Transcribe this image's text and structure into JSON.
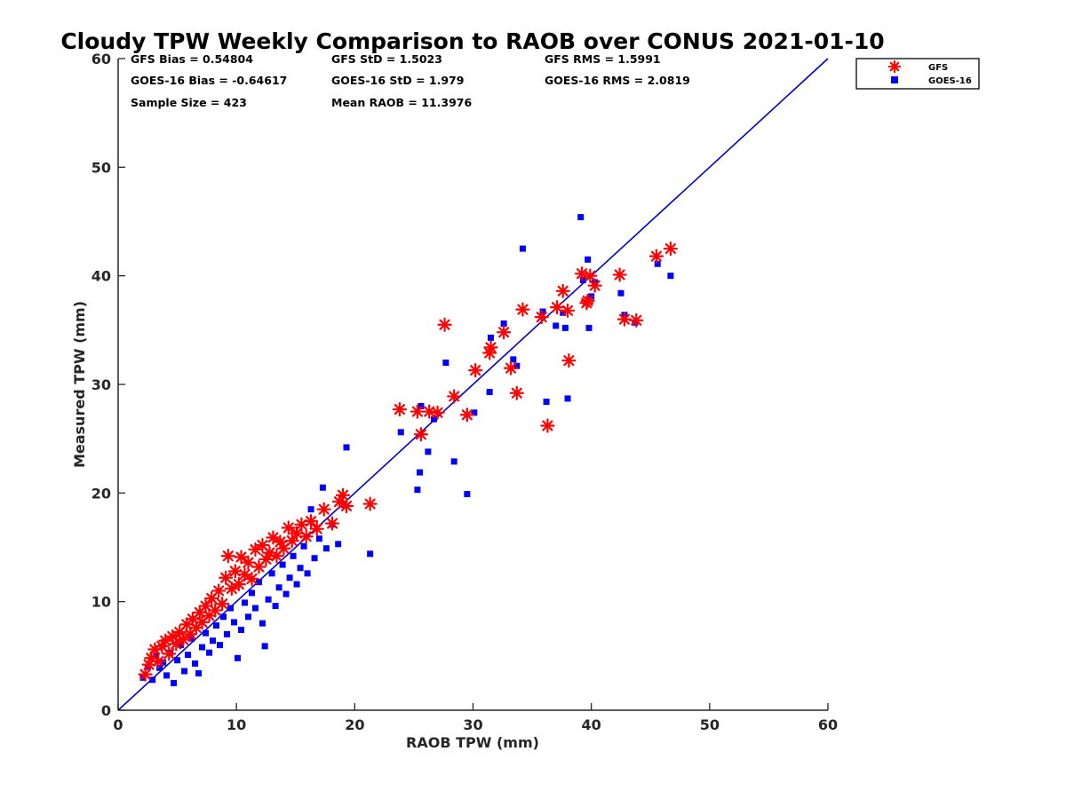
{
  "colors": {
    "gfs": "#ff0000",
    "goes": "#0000ff",
    "line": "#0000cc",
    "axis": "#262626"
  },
  "chart_data": {
    "type": "scatter",
    "title": "Cloudy TPW Weekly Comparison to RAOB over CONUS 2021-01-10",
    "xlabel": "RAOB TPW (mm)",
    "ylabel": "Measured TPW (mm)",
    "xlim": [
      0,
      60
    ],
    "ylim": [
      0,
      60
    ],
    "xticks": [
      "0",
      "10",
      "20",
      "30",
      "40",
      "50",
      "60"
    ],
    "yticks": [
      "0",
      "10",
      "20",
      "30",
      "40",
      "50",
      "60"
    ],
    "grid": false,
    "legend_position": "top-right outside",
    "reference_line": "1:1",
    "stats": [
      [
        "GFS Bias = 0.54804",
        "GFS StD = 1.5023",
        "GFS RMS = 1.5991"
      ],
      [
        "GOES-16 Bias = -0.64617",
        "GOES-16 StD = 1.979",
        "GOES-16 RMS = 2.0819"
      ],
      [
        "Sample Size = 423",
        "Mean RAOB = 11.3976",
        ""
      ]
    ],
    "series": [
      {
        "name": "GFS",
        "marker": "asterisk",
        "points": [
          [
            2.3,
            3.3
          ],
          [
            2.6,
            4.2
          ],
          [
            2.8,
            4.8
          ],
          [
            3.1,
            5.6
          ],
          [
            3.4,
            4.5
          ],
          [
            3.7,
            5.9
          ],
          [
            4.0,
            6.4
          ],
          [
            4.3,
            5.2
          ],
          [
            4.6,
            6.8
          ],
          [
            4.9,
            6.1
          ],
          [
            5.2,
            7.2
          ],
          [
            5.5,
            6.5
          ],
          [
            5.8,
            7.9
          ],
          [
            6.1,
            7.0
          ],
          [
            6.3,
            8.4
          ],
          [
            6.6,
            7.6
          ],
          [
            6.9,
            9.0
          ],
          [
            7.1,
            8.1
          ],
          [
            7.4,
            9.6
          ],
          [
            7.7,
            8.7
          ],
          [
            7.9,
            10.3
          ],
          [
            8.2,
            9.2
          ],
          [
            8.5,
            11.0
          ],
          [
            8.8,
            9.8
          ],
          [
            9.1,
            12.2
          ],
          [
            9.3,
            14.2
          ],
          [
            9.6,
            11.2
          ],
          [
            9.9,
            12.8
          ],
          [
            10.2,
            11.6
          ],
          [
            10.4,
            14.1
          ],
          [
            10.7,
            12.5
          ],
          [
            11.0,
            13.6
          ],
          [
            11.3,
            12.1
          ],
          [
            11.6,
            14.8
          ],
          [
            11.9,
            13.2
          ],
          [
            12.2,
            15.2
          ],
          [
            12.5,
            13.9
          ],
          [
            12.8,
            14.5
          ],
          [
            13.1,
            15.9
          ],
          [
            13.4,
            14.2
          ],
          [
            13.7,
            15.5
          ],
          [
            14.0,
            14.9
          ],
          [
            14.4,
            16.8
          ],
          [
            14.7,
            15.6
          ],
          [
            15.1,
            16.3
          ],
          [
            15.5,
            17.1
          ],
          [
            15.9,
            16.0
          ],
          [
            16.3,
            17.4
          ],
          [
            16.8,
            16.7
          ],
          [
            17.4,
            18.5
          ],
          [
            18.1,
            17.2
          ],
          [
            18.7,
            19.2
          ],
          [
            19.0,
            19.8
          ],
          [
            19.3,
            18.8
          ],
          [
            21.3,
            19.0
          ],
          [
            23.8,
            27.7
          ],
          [
            25.3,
            27.5
          ],
          [
            25.6,
            25.4
          ],
          [
            26.3,
            27.5
          ],
          [
            27.0,
            27.4
          ],
          [
            27.6,
            35.5
          ],
          [
            28.4,
            28.9
          ],
          [
            29.5,
            27.2
          ],
          [
            30.2,
            31.3
          ],
          [
            31.4,
            32.9
          ],
          [
            31.5,
            33.4
          ],
          [
            32.6,
            34.8
          ],
          [
            33.2,
            31.5
          ],
          [
            33.7,
            29.2
          ],
          [
            34.2,
            36.9
          ],
          [
            35.8,
            36.2
          ],
          [
            36.3,
            26.2
          ],
          [
            37.1,
            37.1
          ],
          [
            37.6,
            38.6
          ],
          [
            38.0,
            36.8
          ],
          [
            38.1,
            32.2
          ],
          [
            39.2,
            40.2
          ],
          [
            39.6,
            37.5
          ],
          [
            39.7,
            37.7
          ],
          [
            39.9,
            40.0
          ],
          [
            40.3,
            39.1
          ],
          [
            42.4,
            40.1
          ],
          [
            42.8,
            36.0
          ],
          [
            43.8,
            35.9
          ],
          [
            45.5,
            41.8
          ],
          [
            46.7,
            42.5
          ]
        ]
      },
      {
        "name": "GOES-16",
        "marker": "square",
        "points": [
          [
            2.1,
            3.0
          ],
          [
            2.5,
            4.0
          ],
          [
            2.9,
            2.8
          ],
          [
            3.2,
            5.0
          ],
          [
            3.5,
            3.9
          ],
          [
            3.8,
            4.4
          ],
          [
            4.1,
            3.2
          ],
          [
            4.4,
            5.3
          ],
          [
            4.7,
            2.5
          ],
          [
            5.0,
            4.6
          ],
          [
            5.3,
            6.0
          ],
          [
            5.6,
            3.6
          ],
          [
            5.9,
            5.1
          ],
          [
            6.2,
            6.6
          ],
          [
            6.5,
            4.3
          ],
          [
            6.8,
            3.4
          ],
          [
            7.1,
            5.8
          ],
          [
            7.4,
            7.1
          ],
          [
            7.7,
            5.3
          ],
          [
            8.0,
            6.4
          ],
          [
            8.3,
            7.8
          ],
          [
            8.6,
            6.0
          ],
          [
            8.9,
            8.6
          ],
          [
            9.2,
            7.0
          ],
          [
            9.5,
            9.4
          ],
          [
            9.8,
            8.1
          ],
          [
            10.1,
            4.8
          ],
          [
            10.4,
            7.4
          ],
          [
            10.7,
            9.9
          ],
          [
            11.0,
            8.6
          ],
          [
            11.3,
            10.8
          ],
          [
            11.6,
            9.4
          ],
          [
            11.9,
            11.8
          ],
          [
            12.2,
            8.0
          ],
          [
            12.4,
            5.9
          ],
          [
            12.7,
            10.2
          ],
          [
            13.0,
            12.6
          ],
          [
            13.3,
            9.6
          ],
          [
            13.6,
            11.3
          ],
          [
            13.9,
            13.4
          ],
          [
            14.2,
            10.7
          ],
          [
            14.5,
            12.2
          ],
          [
            14.8,
            14.2
          ],
          [
            15.1,
            11.6
          ],
          [
            15.4,
            13.1
          ],
          [
            15.7,
            15.1
          ],
          [
            16.0,
            12.6
          ],
          [
            16.3,
            18.5
          ],
          [
            16.6,
            14.0
          ],
          [
            17.0,
            15.8
          ],
          [
            17.3,
            20.5
          ],
          [
            17.6,
            14.9
          ],
          [
            18.1,
            17.1
          ],
          [
            18.6,
            15.3
          ],
          [
            19.1,
            18.9
          ],
          [
            19.3,
            24.2
          ],
          [
            21.3,
            14.4
          ],
          [
            23.9,
            25.6
          ],
          [
            25.3,
            20.3
          ],
          [
            25.5,
            21.9
          ],
          [
            25.6,
            28.0
          ],
          [
            26.2,
            23.8
          ],
          [
            26.7,
            26.8
          ],
          [
            27.7,
            32.0
          ],
          [
            28.4,
            22.9
          ],
          [
            29.5,
            19.9
          ],
          [
            30.1,
            27.4
          ],
          [
            31.4,
            29.3
          ],
          [
            31.5,
            34.3
          ],
          [
            32.6,
            35.6
          ],
          [
            33.4,
            32.3
          ],
          [
            33.7,
            31.7
          ],
          [
            34.2,
            42.5
          ],
          [
            35.9,
            36.7
          ],
          [
            36.2,
            28.4
          ],
          [
            37.0,
            35.4
          ],
          [
            37.6,
            36.6
          ],
          [
            37.8,
            35.2
          ],
          [
            38.0,
            28.7
          ],
          [
            39.1,
            45.4
          ],
          [
            39.3,
            39.6
          ],
          [
            39.7,
            41.5
          ],
          [
            39.8,
            35.2
          ],
          [
            40.0,
            38.1
          ],
          [
            40.3,
            39.4
          ],
          [
            42.5,
            38.4
          ],
          [
            42.8,
            36.4
          ],
          [
            43.7,
            35.7
          ],
          [
            45.6,
            41.1
          ],
          [
            46.7,
            40.0
          ]
        ]
      }
    ]
  }
}
